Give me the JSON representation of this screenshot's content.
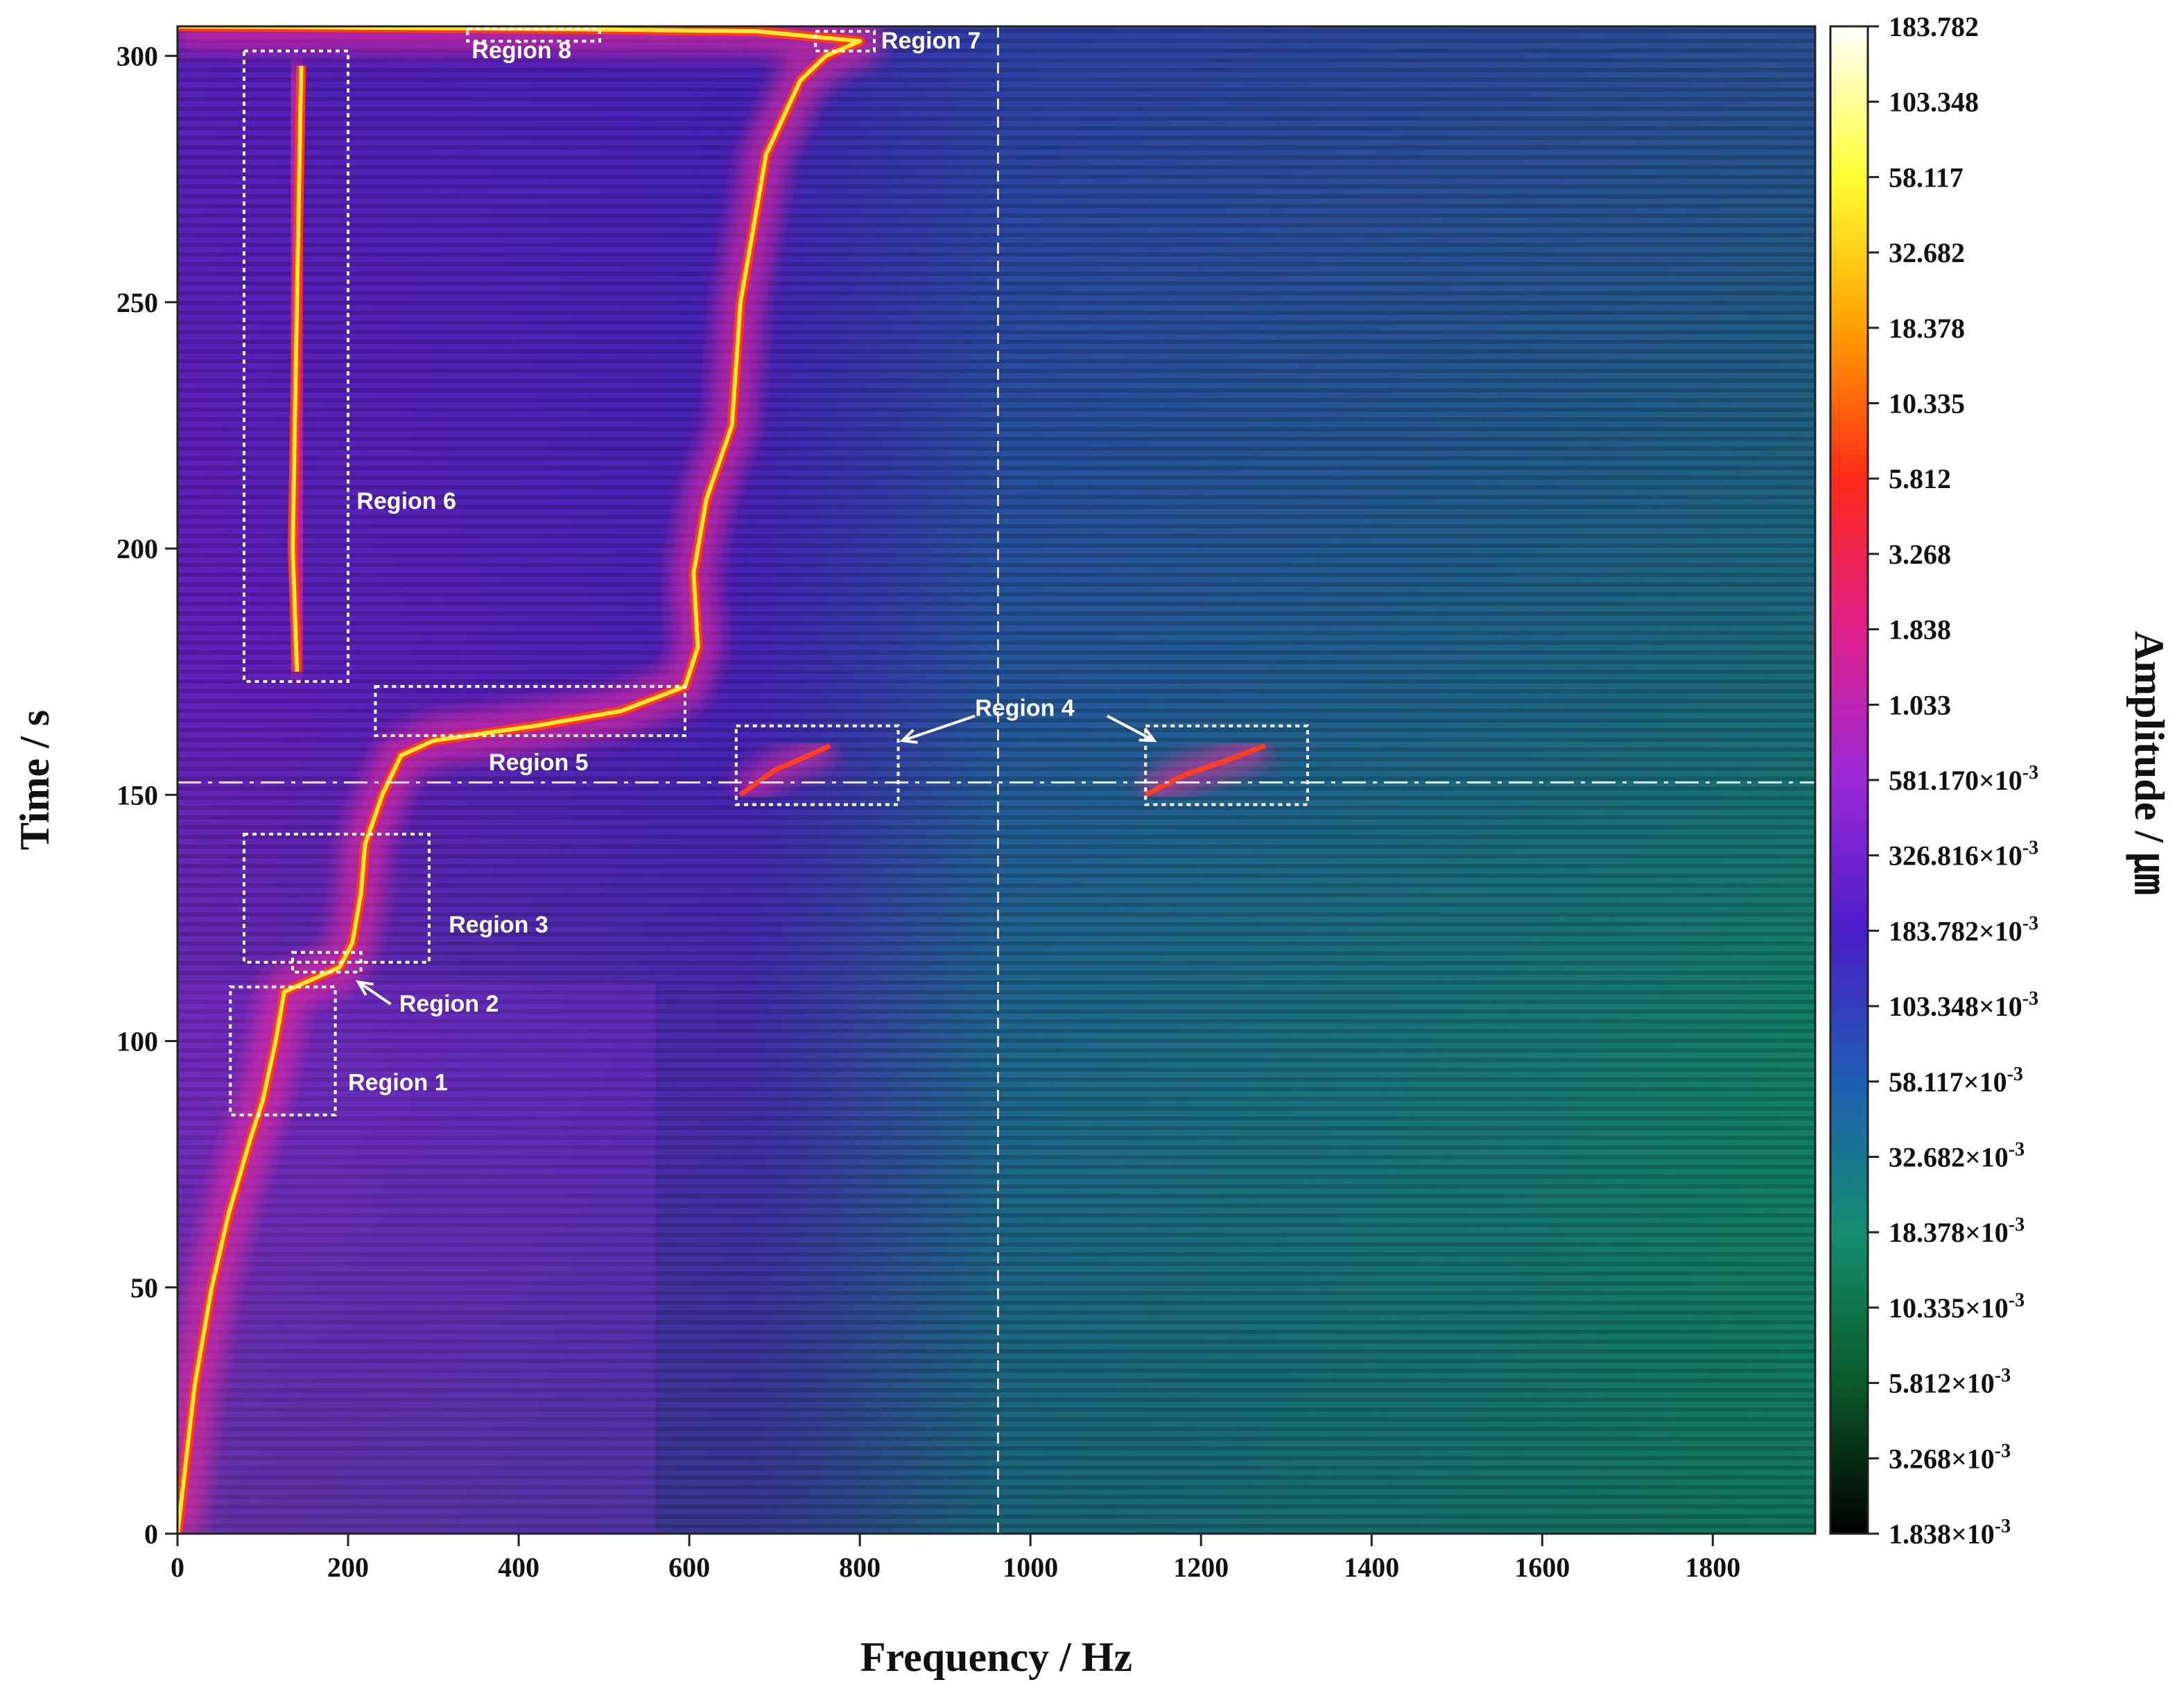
{
  "chart_data": {
    "type": "heatmap",
    "title": "",
    "xlabel": "Frequency / Hz",
    "ylabel": "Time / s",
    "colorbar_label": "Amplitude / ㎛",
    "xlim": [
      0,
      1920
    ],
    "ylim": [
      0,
      306
    ],
    "x_ticks": [
      "0",
      "200",
      "400",
      "600",
      "800",
      "1000",
      "1200",
      "1400",
      "1600",
      "1800"
    ],
    "y_ticks": [
      "0",
      "50",
      "100",
      "150",
      "200",
      "250",
      "300"
    ],
    "grid": false,
    "colorscale": "log",
    "colorbar": {
      "min": 0.001838,
      "max": 183.782,
      "ticks": [
        {
          "value": 183.782,
          "mantissa": "183.782",
          "exp": ""
        },
        {
          "value": 103.348,
          "mantissa": "103.348",
          "exp": ""
        },
        {
          "value": 58.117,
          "mantissa": "58.117",
          "exp": ""
        },
        {
          "value": 32.682,
          "mantissa": "32.682",
          "exp": ""
        },
        {
          "value": 18.378,
          "mantissa": "18.378",
          "exp": ""
        },
        {
          "value": 10.335,
          "mantissa": "10.335",
          "exp": ""
        },
        {
          "value": 5.812,
          "mantissa": "5.812",
          "exp": ""
        },
        {
          "value": 3.268,
          "mantissa": "3.268",
          "exp": ""
        },
        {
          "value": 1.838,
          "mantissa": "1.838",
          "exp": ""
        },
        {
          "value": 1.033,
          "mantissa": "1.033",
          "exp": ""
        },
        {
          "value": 0.58117,
          "mantissa": "581.170×10",
          "exp": "-3"
        },
        {
          "value": 0.326816,
          "mantissa": "326.816×10",
          "exp": "-3"
        },
        {
          "value": 0.183782,
          "mantissa": "183.782×10",
          "exp": "-3"
        },
        {
          "value": 0.103348,
          "mantissa": "103.348×10",
          "exp": "-3"
        },
        {
          "value": 0.058117,
          "mantissa": "58.117×10",
          "exp": "-3"
        },
        {
          "value": 0.032682,
          "mantissa": "32.682×10",
          "exp": "-3"
        },
        {
          "value": 0.018378,
          "mantissa": "18.378×10",
          "exp": "-3"
        },
        {
          "value": 0.010335,
          "mantissa": "10.335×10",
          "exp": "-3"
        },
        {
          "value": 0.005812,
          "mantissa": "5.812×10",
          "exp": "-3"
        },
        {
          "value": 0.003268,
          "mantissa": "3.268×10",
          "exp": "-3"
        },
        {
          "value": 0.001838,
          "mantissa": "1.838×10",
          "exp": "-3"
        }
      ],
      "colors": [
        "#000000",
        "#0b5a2a",
        "#138f6e",
        "#1e5fb3",
        "#4a1ec8",
        "#9b2ad8",
        "#e0208a",
        "#ff2a18",
        "#ffa000",
        "#ffff30",
        "#ffffff"
      ]
    },
    "reference_lines": [
      {
        "axis": "x",
        "value": 962,
        "style": "dashed"
      },
      {
        "axis": "y",
        "value": 152.5,
        "style": "dash-dot"
      }
    ],
    "main_ridge": [
      [
        0,
        0
      ],
      [
        20,
        30
      ],
      [
        40,
        50
      ],
      [
        60,
        65
      ],
      [
        85,
        80
      ],
      [
        100,
        88
      ],
      [
        115,
        100
      ],
      [
        125,
        110
      ],
      [
        190,
        115
      ],
      [
        205,
        120
      ],
      [
        215,
        130
      ],
      [
        220,
        140
      ],
      [
        240,
        150
      ],
      [
        262,
        158
      ],
      [
        300,
        161
      ],
      [
        420,
        164
      ],
      [
        520,
        167
      ],
      [
        595,
        172
      ],
      [
        610,
        180
      ],
      [
        605,
        195
      ],
      [
        620,
        210
      ],
      [
        650,
        225
      ],
      [
        660,
        250
      ],
      [
        675,
        265
      ],
      [
        690,
        280
      ],
      [
        730,
        295
      ],
      [
        760,
        300
      ],
      [
        800,
        303
      ],
      [
        680,
        305
      ],
      [
        430,
        305.5
      ],
      [
        0,
        306
      ]
    ],
    "region6_ridge": [
      [
        140,
        175
      ],
      [
        135,
        200
      ],
      [
        140,
        250
      ],
      [
        145,
        298
      ]
    ],
    "region4_ridges": [
      [
        [
          660,
          150
        ],
        [
          700,
          155
        ],
        [
          740,
          158
        ],
        [
          765,
          160
        ]
      ],
      [
        [
          1135,
          150
        ],
        [
          1180,
          154
        ],
        [
          1230,
          157
        ],
        [
          1275,
          160
        ]
      ]
    ],
    "regions": [
      {
        "label": "Region 1",
        "x": [
          62,
          185
        ],
        "y": [
          85,
          111
        ]
      },
      {
        "label": "Region 2",
        "x": [
          135,
          215
        ],
        "y": [
          114,
          118
        ]
      },
      {
        "label": "Region 3",
        "x": [
          78,
          295
        ],
        "y": [
          116,
          142
        ]
      },
      {
        "label": "Region 4",
        "x": [
          655,
          845
        ],
        "y": [
          148,
          164
        ]
      },
      {
        "label": "Region 4",
        "x": [
          1135,
          1325
        ],
        "y": [
          148,
          164
        ]
      },
      {
        "label": "Region 5",
        "x": [
          232,
          595
        ],
        "y": [
          162,
          172
        ]
      },
      {
        "label": "Region 6",
        "x": [
          78,
          200
        ],
        "y": [
          173,
          301
        ]
      },
      {
        "label": "Region 7",
        "x": [
          748,
          817
        ],
        "y": [
          301,
          305
        ]
      },
      {
        "label": "Region 8",
        "x": [
          340,
          495
        ],
        "y": [
          303,
          305.5
        ]
      }
    ],
    "region_labels": [
      {
        "text": "Region 1",
        "x": 200,
        "y": 90
      },
      {
        "text": "Region 2",
        "x": 260,
        "y": 106
      },
      {
        "text": "Region 3",
        "x": 318,
        "y": 122
      },
      {
        "text": "Region 4",
        "x": 935,
        "y": 166
      },
      {
        "text": "Region 5",
        "x": 365,
        "y": 155
      },
      {
        "text": "Region 6",
        "x": 210,
        "y": 208
      },
      {
        "text": "Region 7",
        "x": 825,
        "y": 301.5
      },
      {
        "text": "Region 8",
        "x": 345,
        "y": 299.5
      }
    ]
  }
}
